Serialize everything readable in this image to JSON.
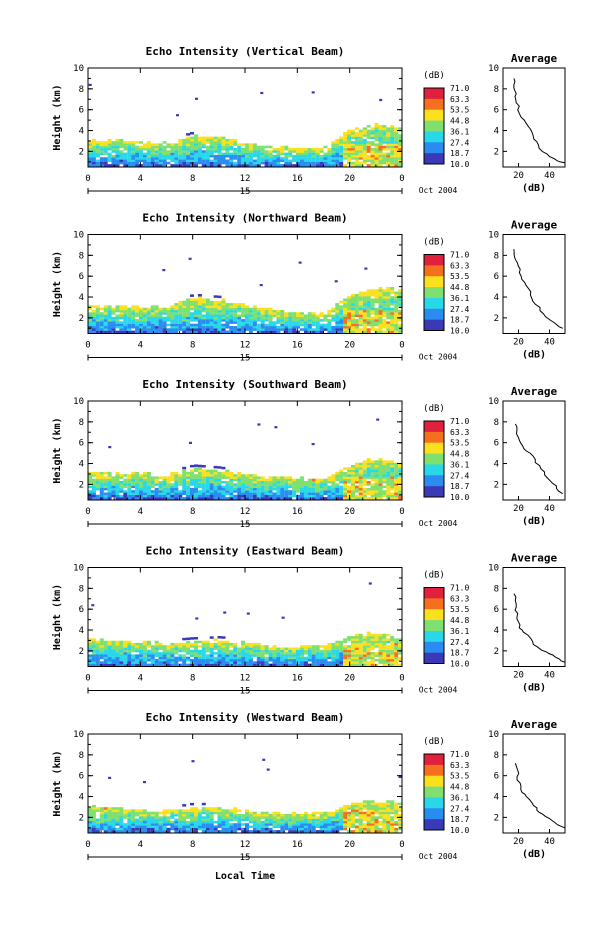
{
  "figure": {
    "xlabel_bottom": "Local Time",
    "day_label": "15",
    "date_label": "Oct 2004"
  },
  "colorbar": {
    "unit": "(dB)",
    "levels": [
      "71.0",
      "63.3",
      "53.5",
      "44.8",
      "36.1",
      "27.4",
      "18.7",
      "10.0"
    ],
    "colors": [
      "#e0203c",
      "#f5701e",
      "#fbe01e",
      "#7fe070",
      "#28d8e8",
      "#2a8cf0",
      "#3a3ab8"
    ]
  },
  "chart_data": [
    {
      "type": "heatmap",
      "title": "Echo Intensity (Vertical Beam)",
      "ylabel": "Height (km)",
      "xticks": [
        "0",
        "4",
        "8",
        "12",
        "16",
        "20",
        "0"
      ],
      "yticks": [
        "2",
        "4",
        "6",
        "8",
        "10"
      ],
      "xlim": [
        0,
        24
      ],
      "ylim": [
        0.5,
        10
      ],
      "cloud": [
        [
          0,
          2.9
        ],
        [
          2,
          3.0
        ],
        [
          4,
          2.8
        ],
        [
          6,
          2.7
        ],
        [
          8,
          3.4
        ],
        [
          10,
          3.3
        ],
        [
          12,
          2.6
        ],
        [
          14,
          2.4
        ],
        [
          16,
          2.3
        ],
        [
          18,
          2.2
        ],
        [
          20,
          4.0
        ],
        [
          22,
          4.5
        ],
        [
          24,
          4.2
        ]
      ],
      "profile": {
        "title": "Average",
        "xlabel": "(dB)",
        "xticks": [
          "20",
          "40"
        ],
        "xlim": [
          10,
          50
        ],
        "yticks": [
          "2",
          "4",
          "6",
          "8",
          "10"
        ],
        "points": [
          [
            17,
            9.0
          ],
          [
            18,
            7.8
          ],
          [
            19,
            7.0
          ],
          [
            20,
            6.0
          ],
          [
            22,
            5.3
          ],
          [
            24,
            5.0
          ],
          [
            26,
            4.4
          ],
          [
            28,
            3.8
          ],
          [
            30,
            3.2
          ],
          [
            32,
            2.6
          ],
          [
            36,
            2.0
          ],
          [
            40,
            1.5
          ],
          [
            45,
            1.1
          ],
          [
            50,
            0.9
          ]
        ]
      }
    },
    {
      "type": "heatmap",
      "title": "Echo Intensity (Northward Beam)",
      "ylabel": "Height (km)",
      "xticks": [
        "0",
        "4",
        "8",
        "12",
        "16",
        "20",
        "0"
      ],
      "yticks": [
        "2",
        "4",
        "6",
        "8",
        "10"
      ],
      "xlim": [
        0,
        24
      ],
      "ylim": [
        0.5,
        10
      ],
      "cloud": [
        [
          0,
          3.0
        ],
        [
          2,
          3.1
        ],
        [
          4,
          3.0
        ],
        [
          6,
          3.0
        ],
        [
          8,
          3.8
        ],
        [
          10,
          3.6
        ],
        [
          12,
          3.2
        ],
        [
          14,
          2.7
        ],
        [
          16,
          2.4
        ],
        [
          18,
          2.3
        ],
        [
          20,
          4.2
        ],
        [
          22,
          4.8
        ],
        [
          24,
          4.5
        ]
      ],
      "profile": {
        "title": "Average",
        "xlabel": "(dB)",
        "xticks": [
          "20",
          "40"
        ],
        "xlim": [
          10,
          50
        ],
        "yticks": [
          "2",
          "4",
          "6",
          "8",
          "10"
        ],
        "points": [
          [
            17,
            8.6
          ],
          [
            18,
            7.8
          ],
          [
            20,
            7.0
          ],
          [
            22,
            6.0
          ],
          [
            24,
            5.4
          ],
          [
            26,
            4.8
          ],
          [
            28,
            4.2
          ],
          [
            30,
            3.6
          ],
          [
            33,
            3.0
          ],
          [
            36,
            2.4
          ],
          [
            40,
            1.8
          ],
          [
            45,
            1.3
          ],
          [
            49,
            1.0
          ]
        ]
      }
    },
    {
      "type": "heatmap",
      "title": "Echo Intensity (Southward Beam)",
      "ylabel": "Height (km)",
      "xticks": [
        "0",
        "4",
        "8",
        "12",
        "16",
        "20",
        "0"
      ],
      "yticks": [
        "2",
        "4",
        "6",
        "8",
        "10"
      ],
      "xlim": [
        0,
        24
      ],
      "ylim": [
        0.5,
        10
      ],
      "cloud": [
        [
          0,
          3.1
        ],
        [
          2,
          3.1
        ],
        [
          4,
          2.9
        ],
        [
          6,
          2.8
        ],
        [
          8,
          3.4
        ],
        [
          10,
          3.2
        ],
        [
          12,
          2.8
        ],
        [
          14,
          2.6
        ],
        [
          16,
          2.5
        ],
        [
          18,
          2.4
        ],
        [
          20,
          3.9
        ],
        [
          22,
          4.3
        ],
        [
          24,
          4.0
        ]
      ],
      "profile": {
        "title": "Average",
        "xlabel": "(dB)",
        "xticks": [
          "20",
          "40"
        ],
        "xlim": [
          10,
          50
        ],
        "yticks": [
          "2",
          "4",
          "6",
          "8",
          "10"
        ],
        "points": [
          [
            18,
            7.8
          ],
          [
            19,
            7.2
          ],
          [
            20,
            6.5
          ],
          [
            22,
            6.0
          ],
          [
            24,
            5.4
          ],
          [
            27,
            5.0
          ],
          [
            30,
            4.4
          ],
          [
            33,
            3.8
          ],
          [
            36,
            3.2
          ],
          [
            39,
            2.6
          ],
          [
            42,
            2.1
          ],
          [
            45,
            1.6
          ],
          [
            48,
            1.1
          ]
        ]
      }
    },
    {
      "type": "heatmap",
      "title": "Echo Intensity (Eastward Beam)",
      "ylabel": "Height (km)",
      "xticks": [
        "0",
        "4",
        "8",
        "12",
        "16",
        "20",
        "0"
      ],
      "yticks": [
        "2",
        "4",
        "6",
        "8",
        "10"
      ],
      "xlim": [
        0,
        24
      ],
      "ylim": [
        0.5,
        10
      ],
      "cloud": [
        [
          0,
          3.0
        ],
        [
          2,
          2.9
        ],
        [
          4,
          2.7
        ],
        [
          6,
          2.6
        ],
        [
          8,
          2.8
        ],
        [
          10,
          2.9
        ],
        [
          12,
          2.6
        ],
        [
          14,
          2.4
        ],
        [
          16,
          2.3
        ],
        [
          18,
          2.4
        ],
        [
          20,
          3.4
        ],
        [
          22,
          3.6
        ],
        [
          24,
          3.4
        ]
      ],
      "profile": {
        "title": "Average",
        "xlabel": "(dB)",
        "xticks": [
          "20",
          "40"
        ],
        "xlim": [
          10,
          50
        ],
        "yticks": [
          "2",
          "4",
          "6",
          "8",
          "10"
        ],
        "points": [
          [
            17,
            7.5
          ],
          [
            18,
            6.5
          ],
          [
            19,
            5.6
          ],
          [
            20,
            4.8
          ],
          [
            21,
            4.2
          ],
          [
            24,
            3.8
          ],
          [
            27,
            3.2
          ],
          [
            30,
            2.6
          ],
          [
            34,
            2.2
          ],
          [
            38,
            1.9
          ],
          [
            42,
            1.6
          ],
          [
            46,
            1.2
          ],
          [
            50,
            0.9
          ]
        ]
      }
    },
    {
      "type": "heatmap",
      "title": "Echo Intensity (Westward Beam)",
      "ylabel": "Height (km)",
      "xticks": [
        "0",
        "4",
        "8",
        "12",
        "16",
        "20",
        "0"
      ],
      "yticks": [
        "2",
        "4",
        "6",
        "8",
        "10"
      ],
      "xlim": [
        0,
        24
      ],
      "ylim": [
        0.5,
        10
      ],
      "cloud": [
        [
          0,
          3.0
        ],
        [
          2,
          2.8
        ],
        [
          4,
          2.6
        ],
        [
          6,
          2.5
        ],
        [
          8,
          2.9
        ],
        [
          10,
          2.8
        ],
        [
          12,
          2.5
        ],
        [
          14,
          2.3
        ],
        [
          16,
          2.2
        ],
        [
          18,
          2.4
        ],
        [
          20,
          3.2
        ],
        [
          22,
          3.4
        ],
        [
          24,
          3.3
        ]
      ],
      "profile": {
        "title": "Average",
        "xlabel": "(dB)",
        "xticks": [
          "20",
          "40"
        ],
        "xlim": [
          10,
          50
        ],
        "yticks": [
          "2",
          "4",
          "6",
          "8",
          "10"
        ],
        "points": [
          [
            18,
            7.2
          ],
          [
            19,
            6.5
          ],
          [
            20,
            5.6
          ],
          [
            21,
            5.0
          ],
          [
            22,
            4.4
          ],
          [
            25,
            4.0
          ],
          [
            28,
            3.4
          ],
          [
            31,
            2.9
          ],
          [
            34,
            2.5
          ],
          [
            38,
            2.1
          ],
          [
            42,
            1.7
          ],
          [
            46,
            1.3
          ],
          [
            49,
            1.0
          ]
        ]
      }
    }
  ]
}
